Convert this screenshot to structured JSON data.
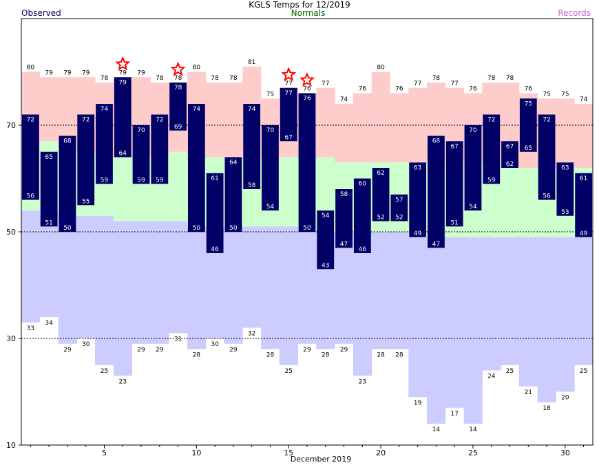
{
  "header": {
    "title": "KGLS Temps for 12/2019",
    "observed_label": "Observed",
    "normals_label": "Normals",
    "records_label": "Records"
  },
  "colors": {
    "record_band": "#ffcccc",
    "normal_band": "#ccffcc",
    "low_band": "#ccccff",
    "observed_bar": "#000066",
    "star": "#ff0000"
  },
  "chart_data": {
    "type": "bar",
    "title": "KGLS Temps for 12/2019",
    "xlabel": "December 2019",
    "ylabel": "",
    "xlim": [
      0.5,
      31.5
    ],
    "ylim": [
      10,
      90
    ],
    "x_ticks": [
      5,
      10,
      15,
      20,
      25,
      30
    ],
    "y_ticks": [
      10,
      30,
      50,
      70
    ],
    "days": [
      1,
      2,
      3,
      4,
      5,
      6,
      7,
      8,
      9,
      10,
      11,
      12,
      13,
      14,
      15,
      16,
      17,
      18,
      19,
      20,
      21,
      22,
      23,
      24,
      25,
      26,
      27,
      28,
      29,
      30,
      31
    ],
    "series": [
      {
        "name": "Observed",
        "high": [
          72,
          65,
          68,
          72,
          74,
          79,
          70,
          72,
          78,
          74,
          61,
          64,
          74,
          70,
          77,
          76,
          54,
          58,
          60,
          62,
          57,
          63,
          68,
          67,
          70,
          72,
          67,
          75,
          72,
          63,
          61
        ],
        "low": [
          56,
          51,
          50,
          55,
          59,
          64,
          59,
          59,
          69,
          50,
          46,
          50,
          58,
          54,
          67,
          50,
          43,
          47,
          46,
          52,
          52,
          49,
          47,
          51,
          54,
          59,
          62,
          65,
          56,
          53,
          49
        ]
      },
      {
        "name": "Normals",
        "high": [
          56,
          67,
          66,
          65,
          64,
          64,
          64,
          64,
          65,
          64,
          64,
          64,
          64,
          64,
          64,
          64,
          64,
          63,
          63,
          63,
          63,
          63,
          63,
          63,
          63,
          63,
          62,
          62,
          62,
          62,
          62
        ],
        "low": [
          54,
          54,
          53,
          53,
          53,
          52,
          52,
          52,
          52,
          51,
          51,
          51,
          51,
          51,
          51,
          50,
          50,
          50,
          50,
          50,
          50,
          49,
          49,
          49,
          49,
          49,
          49,
          49,
          49,
          49,
          49
        ]
      },
      {
        "name": "Records",
        "high": [
          80,
          79,
          79,
          79,
          78,
          79,
          79,
          78,
          78,
          80,
          78,
          78,
          81,
          75,
          77,
          76,
          77,
          74,
          76,
          80,
          76,
          77,
          78,
          77,
          76,
          78,
          78,
          76,
          75,
          75,
          74
        ],
        "low": [
          33,
          34,
          29,
          30,
          25,
          23,
          29,
          29,
          31,
          28,
          30,
          29,
          32,
          28,
          25,
          29,
          28,
          29,
          23,
          28,
          28,
          19,
          14,
          17,
          14,
          24,
          25,
          21,
          18,
          20,
          25
        ]
      }
    ],
    "record_set_days": [
      6,
      9,
      15,
      16
    ]
  }
}
